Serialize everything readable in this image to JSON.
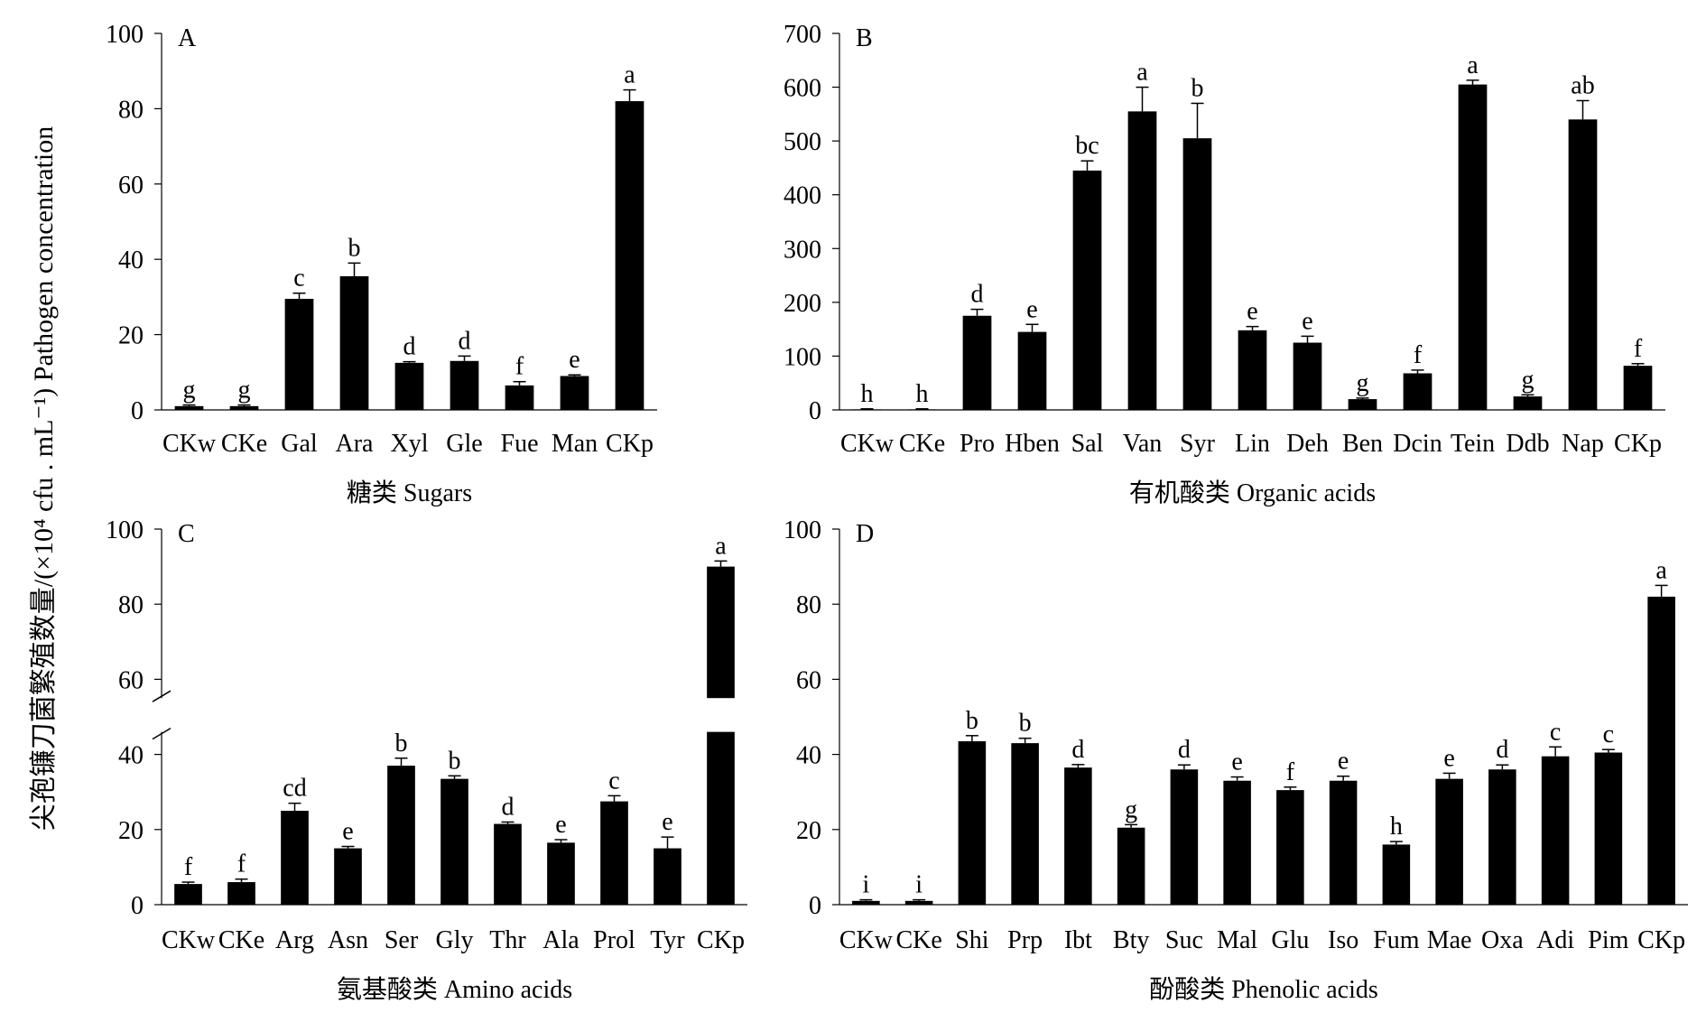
{
  "y_axis_label": "尖孢镰刀菌繁殖数量/(×10⁴ cfu . mL⁻¹) Pathogen concentration",
  "colors": {
    "bar": "#000000",
    "axis": "#000000",
    "background": "#ffffff"
  },
  "chart_data": [
    {
      "type": "bar",
      "panel": "A",
      "xlabel": "糖类 Sugars",
      "ylabel": "",
      "ylim": [
        0,
        100
      ],
      "yticks": [
        0,
        20,
        40,
        60,
        80,
        100
      ],
      "categories": [
        "CKw",
        "CKe",
        "Gal",
        "Ara",
        "Xyl",
        "Gle",
        "Fue",
        "Man",
        "CKp"
      ],
      "values": [
        1,
        1,
        29.5,
        35.5,
        12.5,
        13,
        6.5,
        9,
        82
      ],
      "errors": [
        0.3,
        0.3,
        1.5,
        3.5,
        0.3,
        1.3,
        1,
        0.3,
        3
      ],
      "letters": [
        "g",
        "g",
        "c",
        "b",
        "d",
        "d",
        "f",
        "e",
        "a"
      ]
    },
    {
      "type": "bar",
      "panel": "B",
      "xlabel": "有机酸类 Organic acids",
      "ylabel": "",
      "ylim": [
        0,
        700
      ],
      "yticks": [
        0,
        100,
        200,
        300,
        400,
        500,
        600,
        700
      ],
      "categories": [
        "CKw",
        "CKe",
        "Pro",
        "Hben",
        "Sal",
        "Van",
        "Syr",
        "Lin",
        "Deh",
        "Ben",
        "Dcin",
        "Tein",
        "Ddb",
        "Nap",
        "CKp"
      ],
      "values": [
        1,
        1,
        175,
        145,
        445,
        555,
        505,
        148,
        125,
        20,
        68,
        605,
        25,
        540,
        82
      ],
      "errors": [
        1,
        1,
        12,
        14,
        18,
        45,
        65,
        7,
        12,
        2,
        6,
        8,
        3,
        35,
        4
      ],
      "letters": [
        "h",
        "h",
        "d",
        "e",
        "bc",
        "a",
        "b",
        "e",
        "e",
        "g",
        "f",
        "a",
        "g",
        "ab",
        "f"
      ]
    },
    {
      "type": "bar",
      "panel": "C",
      "xlabel": "氨基酸类 Amino acids",
      "ylabel": "",
      "ylim": [
        0,
        100
      ],
      "yticks": [
        0,
        20,
        40,
        60,
        80,
        100
      ],
      "axis_break": [
        46,
        55
      ],
      "categories": [
        "CKw",
        "CKe",
        "Arg",
        "Asn",
        "Ser",
        "Gly",
        "Thr",
        "Ala",
        "Prol",
        "Tyr",
        "CKp"
      ],
      "values": [
        5.5,
        6,
        25,
        15,
        37,
        33.5,
        21.5,
        16.5,
        27.5,
        15,
        90
      ],
      "errors": [
        0.5,
        0.8,
        2,
        0.5,
        2,
        0.8,
        0.5,
        0.8,
        1.5,
        3,
        1.5
      ],
      "letters": [
        "f",
        "f",
        "cd",
        "e",
        "b",
        "b",
        "d",
        "e",
        "c",
        "e",
        "a"
      ]
    },
    {
      "type": "bar",
      "panel": "D",
      "xlabel": "酚酸类 Phenolic acids",
      "ylabel": "",
      "ylim": [
        0,
        100
      ],
      "yticks": [
        0,
        20,
        40,
        60,
        80,
        100
      ],
      "categories": [
        "CKw",
        "CKe",
        "Shi",
        "Prp",
        "Ibt",
        "Bty",
        "Suc",
        "Mal",
        "Glu",
        "Iso",
        "Fum",
        "Mae",
        "Oxa",
        "Adi",
        "Pim",
        "CKp"
      ],
      "values": [
        1,
        1,
        43.5,
        43,
        36.5,
        20.5,
        36,
        33,
        30.5,
        33,
        16,
        33.5,
        36,
        39.5,
        40.5,
        82
      ],
      "errors": [
        0.3,
        0.3,
        1.5,
        1.3,
        0.8,
        0.8,
        1.2,
        1,
        0.8,
        1.2,
        0.8,
        1.5,
        1.2,
        2.5,
        0.8,
        3
      ],
      "letters": [
        "i",
        "i",
        "b",
        "b",
        "d",
        "g",
        "d",
        "e",
        "f",
        "e",
        "h",
        "e",
        "d",
        "c",
        "c",
        "a"
      ]
    }
  ]
}
